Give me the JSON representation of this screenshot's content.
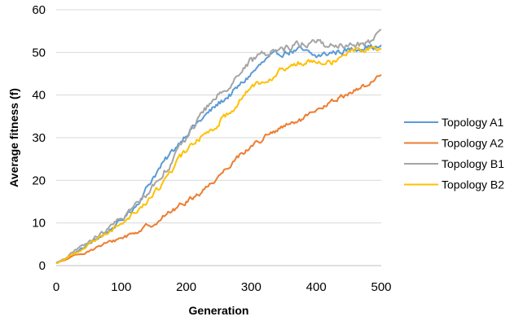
{
  "chart_data": {
    "type": "line",
    "title": "",
    "xlabel": "Generation",
    "ylabel": "Average fitness (f)",
    "xlim": [
      0,
      500
    ],
    "ylim": [
      0,
      60
    ],
    "xticks": [
      "0",
      "100",
      "200",
      "300",
      "400",
      "500"
    ],
    "yticks": [
      "0",
      "10",
      "20",
      "30",
      "40",
      "50",
      "60"
    ],
    "grid": "horizontal",
    "legend_position": "right",
    "series": [
      {
        "name": "Topology A1",
        "color": "#5B9BD5",
        "noise": 0.6,
        "x": [
          0,
          25,
          50,
          75,
          100,
          125,
          150,
          175,
          200,
          225,
          250,
          275,
          300,
          325,
          350,
          375,
          400,
          425,
          450,
          475,
          500
        ],
        "y": [
          0.5,
          2.5,
          5,
          7.5,
          10.5,
          14.5,
          21,
          26,
          31,
          34.5,
          38,
          41,
          45,
          48.5,
          50,
          50.5,
          49,
          50,
          50.5,
          51.5,
          51
        ]
      },
      {
        "name": "Topology A2",
        "color": "#ED7D31",
        "noise": 0.5,
        "x": [
          0,
          25,
          50,
          75,
          100,
          125,
          150,
          175,
          200,
          225,
          250,
          275,
          300,
          325,
          350,
          375,
          400,
          425,
          450,
          475,
          500
        ],
        "y": [
          0.5,
          2,
          3.5,
          5,
          6.5,
          8,
          10,
          12.5,
          15,
          17.5,
          21,
          25,
          28,
          30.5,
          32.5,
          34,
          36,
          38.5,
          40.5,
          42,
          45
        ]
      },
      {
        "name": "Topology B1",
        "color": "#A5A5A5",
        "noise": 0.7,
        "x": [
          0,
          25,
          50,
          75,
          100,
          125,
          150,
          175,
          200,
          225,
          250,
          275,
          300,
          325,
          350,
          375,
          400,
          425,
          450,
          475,
          500
        ],
        "y": [
          0.5,
          3,
          5.5,
          8,
          11,
          14.5,
          19,
          24,
          30,
          36,
          40,
          44,
          48,
          50,
          51,
          52,
          52.5,
          51.5,
          51.5,
          52,
          54
        ]
      },
      {
        "name": "Topology B2",
        "color": "#FFC000",
        "noise": 0.6,
        "x": [
          0,
          25,
          50,
          75,
          100,
          125,
          150,
          175,
          200,
          225,
          250,
          275,
          300,
          325,
          350,
          375,
          400,
          425,
          450,
          475,
          500
        ],
        "y": [
          0.5,
          2.5,
          5,
          7.5,
          10,
          13,
          16.5,
          22,
          27,
          30.5,
          33.5,
          37.5,
          42,
          44,
          46,
          47.5,
          48.5,
          48,
          50.5,
          51,
          51
        ]
      }
    ]
  }
}
